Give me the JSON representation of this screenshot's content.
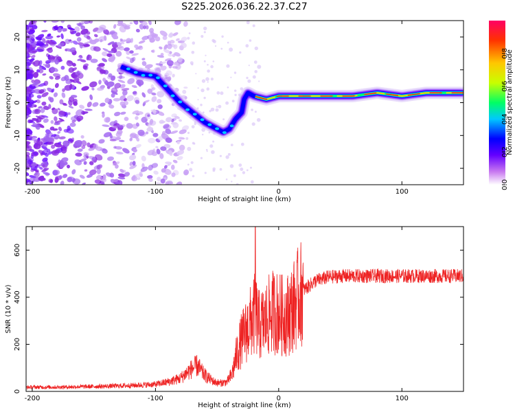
{
  "title": "S225.2026.036.22.37.C27",
  "chart_data": [
    {
      "type": "heatmap",
      "name": "spectrogram",
      "xlabel": "Height of straight line (km)",
      "ylabel": "Frequency (Hz)",
      "xlim": [
        -205,
        150
      ],
      "ylim": [
        -25,
        25
      ],
      "xticks": [
        -200,
        -100,
        0,
        100
      ],
      "yticks": [
        -20,
        -10,
        0,
        10,
        20
      ],
      "colorbar": {
        "label": "Normalized spectral amplitude",
        "range": [
          0,
          1
        ],
        "ticks": [
          "0.0",
          "0.2",
          "0.4",
          "0.6",
          "0.8"
        ],
        "tick_values": [
          0.0,
          0.2,
          0.4,
          0.6,
          0.8
        ],
        "colors": [
          "#ffffff",
          "#c878f0",
          "#6400ff",
          "#0000ff",
          "#00c8ff",
          "#00ff64",
          "#c8ff00",
          "#ffc800",
          "#ff3200",
          "#ff0064"
        ]
      },
      "ridge": {
        "x": [
          -128,
          -115,
          -100,
          -90,
          -80,
          -70,
          -60,
          -50,
          -45,
          -40,
          -35,
          -30,
          -28,
          -25,
          -20,
          -10,
          0,
          20,
          40,
          60,
          80,
          100,
          120,
          150
        ],
        "y": [
          11,
          9,
          8,
          4,
          0,
          -3,
          -6,
          -8,
          -9,
          -8,
          -5,
          -3,
          1,
          3,
          2,
          1,
          2,
          2,
          2,
          2,
          3,
          2,
          3,
          3
        ]
      }
    },
    {
      "type": "line",
      "name": "snr",
      "xlabel": "Height of straight line (km)",
      "ylabel": "SNR (10 * v/v)",
      "xlim": [
        -205,
        150
      ],
      "ylim": [
        0,
        700
      ],
      "xticks": [
        -200,
        -100,
        0,
        100
      ],
      "yticks": [
        0,
        200,
        400,
        600
      ],
      "color": "#ee2222",
      "series": [
        {
          "name": "SNR",
          "x": [
            -205,
            -180,
            -160,
            -140,
            -120,
            -100,
            -90,
            -80,
            -72,
            -66,
            -62,
            -58,
            -52,
            -48,
            -42,
            -38,
            -34,
            -30,
            -26,
            -22,
            -19,
            -16,
            -12,
            -8,
            -4,
            0,
            4,
            8,
            12,
            16,
            20,
            25,
            30,
            40,
            50,
            60,
            80,
            100,
            120,
            150
          ],
          "values": [
            18,
            18,
            20,
            22,
            25,
            30,
            40,
            55,
            90,
            110,
            80,
            60,
            40,
            35,
            40,
            70,
            160,
            220,
            260,
            300,
            330,
            280,
            290,
            320,
            340,
            330,
            320,
            330,
            360,
            400,
            430,
            450,
            470,
            485,
            490,
            490,
            490,
            490,
            490,
            490
          ]
        }
      ]
    }
  ]
}
